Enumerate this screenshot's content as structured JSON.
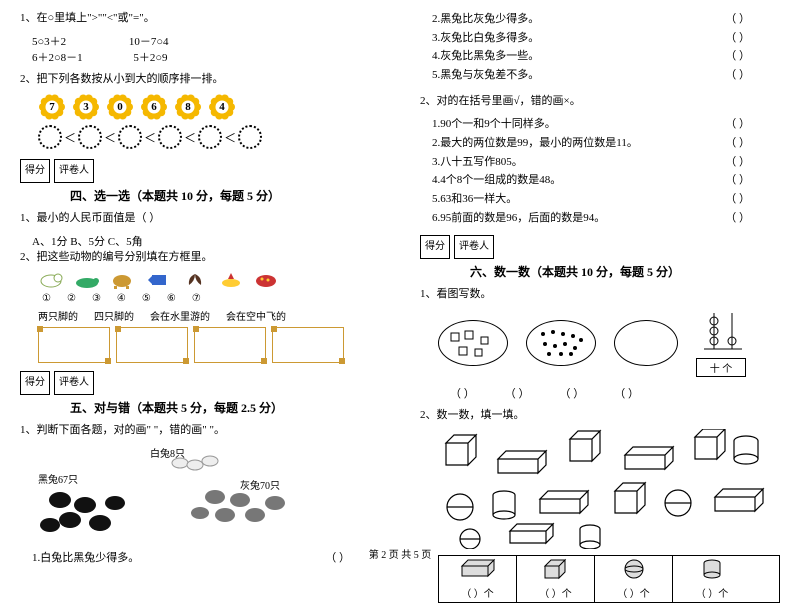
{
  "left": {
    "q1": {
      "prompt": "1、在○里填上\">\"\"<\"或\"=\"。",
      "line1a": "5○3＋2",
      "line1b": "10－7○4",
      "line2a": "6＋2○8－1",
      "line2b": "5＋2○9"
    },
    "q2": {
      "prompt": "2、把下列各数按从小到大的顺序排一排。",
      "flower_vals": [
        "7",
        "3",
        "0",
        "6",
        "8",
        "4"
      ],
      "lt": "＜"
    },
    "score": {
      "a": "得分",
      "b": "评卷人"
    },
    "s4": {
      "title": "四、选一选（本题共 10 分，每题 5 分）",
      "q1": "1、最小的人民币面值是（  ）",
      "opts": "A、1分        B、5分        C、5角",
      "q2": "2、把这些动物的编号分别填在方框里。",
      "nums": [
        "①",
        "②",
        "③",
        "④",
        "⑤",
        "⑥",
        "⑦"
      ],
      "cats": [
        "两只脚的",
        "四只脚的",
        "会在水里游的",
        "会在空中飞的"
      ]
    },
    "s5": {
      "title": "五、对与错（本题共 5 分，每题 2.5 分）",
      "q1": "1、判断下面各题，对的画\" \"，错的画\" \"。",
      "white": "白兔8只",
      "black": "黑兔67只",
      "grey": "灰兔70只",
      "item1": "1.白兔比黑兔少得多。",
      "paren": "（    ）"
    }
  },
  "right": {
    "cont": {
      "i2": "2.黑兔比灰兔少得多。",
      "i3": "3.灰兔比白兔多得多。",
      "i4": "4.灰兔比黑兔多一些。",
      "i5": "5.黑兔与灰兔差不多。",
      "paren": "（    ）"
    },
    "q2": {
      "prompt": "2、对的在括号里画√，错的画×。",
      "i1": "1.90个一和9个十同样多。",
      "i2": "2.最大的两位数是99，最小的两位数是11。",
      "i3": "3.八十五写作805。",
      "i4": "4.4个8个一组成的数是48。",
      "i5": "5.63和36一样大。",
      "i6": "6.95前面的数是96，后面的数是94。"
    },
    "score": {
      "a": "得分",
      "b": "评卷人"
    },
    "s6": {
      "title": "六、数一数（本题共 10 分，每题 5 分）",
      "q1": "1、看图写数。",
      "plus": "十  个",
      "blank": "（    ）",
      "q2": "2、数一数，填一填。",
      "unit": "）个"
    }
  },
  "footer": "第 2 页  共 5 页",
  "colors": {
    "flower": "#f5b800",
    "frame": "#cc9933"
  }
}
